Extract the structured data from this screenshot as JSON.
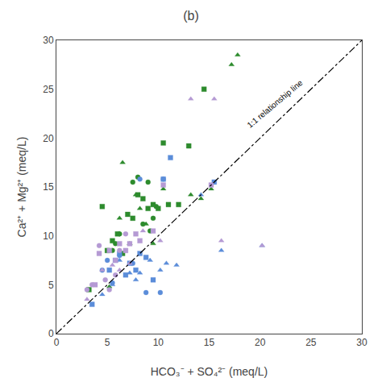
{
  "chart_data": {
    "type": "scatter",
    "title": "(b)",
    "xlabel": "HCO₃⁻ + SO₄²⁻ (meq/L)",
    "ylabel": "Ca²⁺ + Mg²⁺ (meq/L)",
    "xlim": [
      0,
      30
    ],
    "ylim": [
      0,
      30
    ],
    "xticks": [
      0,
      5,
      10,
      15,
      20,
      25,
      30
    ],
    "yticks": [
      0,
      5,
      10,
      15,
      20,
      25,
      30
    ],
    "grid": false,
    "series": [
      {
        "type": "scatter",
        "color": "#2d8b2d",
        "marker": "circle",
        "x": [
          5.5,
          5.8,
          6.2,
          7.5,
          8.0,
          8.5,
          9.0,
          9.2,
          9.5,
          9.8
        ],
        "values": [
          8.5,
          9.2,
          10.2,
          15.5,
          16.0,
          11.2,
          15.5,
          10.5,
          11.8,
          13.0
        ]
      },
      {
        "type": "scatter",
        "color": "#2d8b2d",
        "marker": "square",
        "x": [
          3.2,
          4.5,
          5.0,
          5.5,
          6.0,
          6.5,
          7.0,
          7.5,
          8.0,
          8.5,
          9.0,
          9.5,
          10.0,
          10.5,
          11.0,
          12.0,
          13.0,
          14.5
        ],
        "values": [
          4.5,
          13.0,
          8.5,
          9.5,
          10.2,
          8.2,
          12.2,
          11.8,
          14.2,
          13.8,
          12.8,
          13.2,
          12.8,
          19.5,
          13.2,
          13.2,
          19.2,
          25.0
        ]
      },
      {
        "type": "scatter",
        "color": "#2d8b2d",
        "marker": "triangle-up",
        "x": [
          5.2,
          6.2,
          6.5,
          7.2,
          7.8,
          8.2,
          8.8,
          9.5,
          10.5,
          13.2,
          14.2,
          15.2,
          17.2,
          17.8
        ],
        "values": [
          4.8,
          11.8,
          17.5,
          9.2,
          14.2,
          12.8,
          11.2,
          9.2,
          14.8,
          14.2,
          13.8,
          14.8,
          27.5,
          28.5
        ]
      },
      {
        "type": "scatter",
        "color": "#5b8dd9",
        "marker": "circle",
        "x": [
          4.5,
          5.0,
          5.5,
          6.2,
          7.5,
          8.2,
          8.8,
          10.2,
          10.5
        ],
        "values": [
          6.5,
          7.5,
          5.2,
          8.0,
          7.2,
          15.8,
          4.2,
          4.2,
          15.8
        ]
      },
      {
        "type": "scatter",
        "color": "#5b8dd9",
        "marker": "square",
        "x": [
          3.5,
          5.2,
          5.8,
          6.2,
          6.8,
          7.2,
          7.8,
          8.2,
          8.8,
          9.5,
          10.5,
          11.2,
          15.5
        ],
        "values": [
          3.0,
          6.5,
          7.5,
          8.2,
          6.0,
          7.2,
          6.5,
          8.2,
          7.8,
          5.5,
          15.8,
          18.0,
          15.5
        ]
      },
      {
        "type": "scatter",
        "color": "#5b8dd9",
        "marker": "triangle-up",
        "x": [
          4.5,
          5.5,
          6.2,
          7.2,
          7.8,
          8.2,
          9.2,
          10.2,
          10.8,
          11.8,
          14.2,
          16.2,
          20.2
        ],
        "values": [
          4.0,
          5.0,
          7.5,
          6.2,
          5.5,
          6.2,
          7.5,
          6.5,
          7.2,
          7.0,
          14.2,
          8.5,
          9.0
        ]
      },
      {
        "type": "scatter",
        "color": "#b59ad4",
        "marker": "circle",
        "x": [
          3.0,
          3.5,
          4.2,
          4.8,
          5.2,
          5.8,
          6.2,
          6.8
        ],
        "values": [
          4.5,
          5.0,
          9.0,
          5.5,
          4.5,
          6.0,
          8.5,
          10.2
        ]
      },
      {
        "type": "scatter",
        "color": "#b59ad4",
        "marker": "square",
        "x": [
          3.8,
          4.2,
          5.2,
          5.8,
          6.2,
          6.8,
          7.2,
          7.8,
          8.2,
          9.5,
          10.5,
          15.2
        ],
        "values": [
          5.0,
          8.2,
          8.5,
          7.5,
          9.2,
          8.5,
          9.2,
          10.2,
          9.5,
          10.5,
          15.2,
          15.2
        ]
      },
      {
        "type": "scatter",
        "color": "#b59ad4",
        "marker": "triangle-up",
        "x": [
          3.0,
          4.5,
          5.5,
          6.2,
          7.2,
          8.5,
          10.2,
          13.2,
          15.5,
          16.2,
          20.2
        ],
        "values": [
          3.5,
          6.5,
          7.0,
          6.5,
          7.2,
          10.5,
          9.5,
          24.0,
          24.0,
          9.5,
          9.0
        ]
      },
      {
        "type": "line",
        "color": "#000000",
        "line_style": "dashdot",
        "x": [
          0,
          30
        ],
        "values": [
          0,
          30
        ]
      }
    ],
    "annotations": [
      {
        "text": "1:1 relationship line",
        "x": 21.5,
        "y": 23.5
      }
    ]
  }
}
